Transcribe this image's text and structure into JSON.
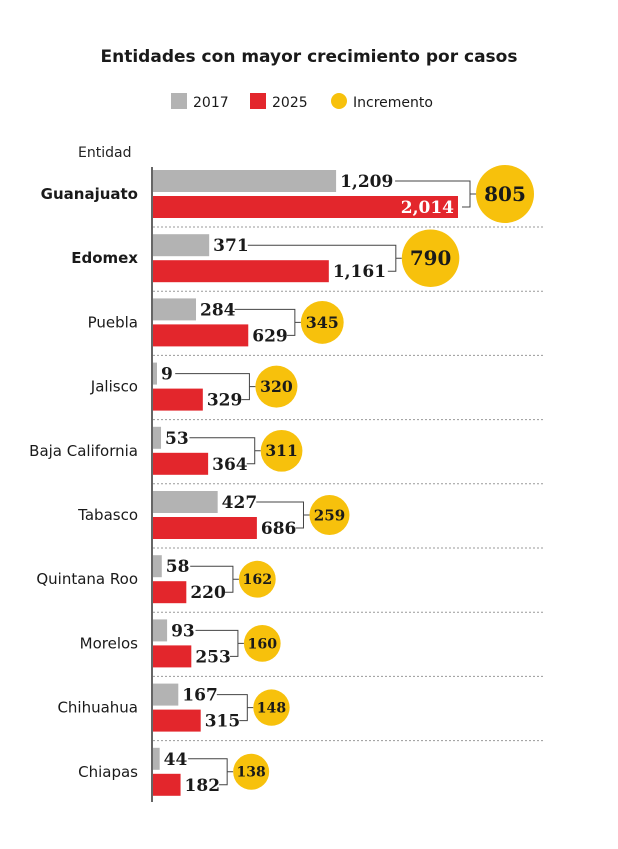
{
  "chart_data": {
    "type": "bar",
    "title": "Entidades con mayor crecimiento por casos",
    "ylabel": "Entidad",
    "xlim": [
      0,
      2100
    ],
    "grid": false,
    "legend_placement": "top-center",
    "categories": [
      "Guanajuato",
      "Edomex",
      "Puebla",
      "Jalisco",
      "Baja California",
      "Tabasco",
      "Quintana Roo",
      "Morelos",
      "Chihuahua",
      "Chiapas"
    ],
    "bold_categories": [
      "Guanajuato",
      "Edomex"
    ],
    "series": [
      {
        "name": "2017",
        "color": "#b3b3b3",
        "values": [
          1209,
          371,
          284,
          9,
          53,
          427,
          58,
          93,
          167,
          44
        ],
        "labels": [
          "1,209",
          "371",
          "284",
          "9",
          "53",
          "427",
          "58",
          "93",
          "167",
          "44"
        ]
      },
      {
        "name": "2025",
        "color": "#e3262c",
        "values": [
          2014,
          1161,
          629,
          329,
          364,
          686,
          220,
          253,
          315,
          182
        ],
        "labels": [
          "2,014",
          "1,161",
          "629",
          "329",
          "364",
          "686",
          "220",
          "253",
          "315",
          "182"
        ]
      }
    ],
    "increment": {
      "name": "Incremento",
      "color": "#f7c10c",
      "values": [
        805,
        790,
        345,
        320,
        311,
        259,
        162,
        160,
        148,
        138
      ]
    }
  }
}
